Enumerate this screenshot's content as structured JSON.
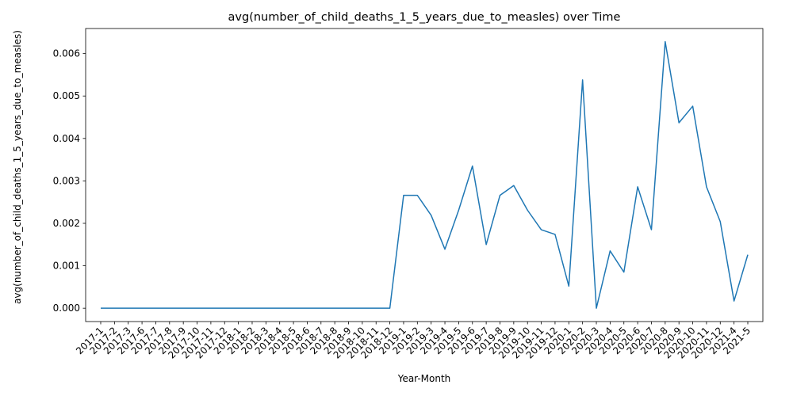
{
  "chart_data": {
    "type": "line",
    "title": "avg(number_of_child_deaths_1_5_years_due_to_measles) over Time",
    "xlabel": "Year-Month",
    "ylabel": "avg(number_of_child_deaths_1_5_years_due_to_measles)",
    "ylim": [
      -0.000314,
      0.00659
    ],
    "yticks": [
      "0.000",
      "0.001",
      "0.002",
      "0.003",
      "0.004",
      "0.005",
      "0.006"
    ],
    "grid": false,
    "categories": [
      "2017-1",
      "2017-2",
      "2017-3",
      "2017-6",
      "2017-7",
      "2017-8",
      "2017-9",
      "2017-10",
      "2017-11",
      "2017-12",
      "2018-1",
      "2018-2",
      "2018-3",
      "2018-4",
      "2018-5",
      "2018-6",
      "2018-7",
      "2018-8",
      "2018-9",
      "2018-10",
      "2018-11",
      "2018-12",
      "2019-1",
      "2019-2",
      "2019-3",
      "2019-4",
      "2019-5",
      "2019-6",
      "2019-7",
      "2019-8",
      "2019-9",
      "2019-10",
      "2019-11",
      "2019-12",
      "2020-1",
      "2020-2",
      "2020-3",
      "2020-4",
      "2020-5",
      "2020-6",
      "2020-7",
      "2020-8",
      "2020-9",
      "2020-10",
      "2020-11",
      "2020-12",
      "2021-4",
      "2021-5"
    ],
    "series": [
      {
        "values": [
          0,
          0,
          0,
          0,
          0,
          0,
          0,
          0,
          0,
          0,
          0,
          0,
          0,
          0,
          0,
          0,
          0,
          0,
          0,
          0,
          0,
          0,
          0.00266,
          0.00266,
          0.00219,
          0.00139,
          0.00231,
          0.00335,
          0.0015,
          0.00266,
          0.00289,
          0.00231,
          0.00185,
          0.00174,
          0.00052,
          0.00538,
          0,
          0.00135,
          0.00085,
          0.00286,
          0.00185,
          0.00628,
          0.00437,
          0.00476,
          0.00286,
          0.00204,
          0.00017,
          0.00126
        ],
        "color": "#1f77b4"
      }
    ]
  }
}
